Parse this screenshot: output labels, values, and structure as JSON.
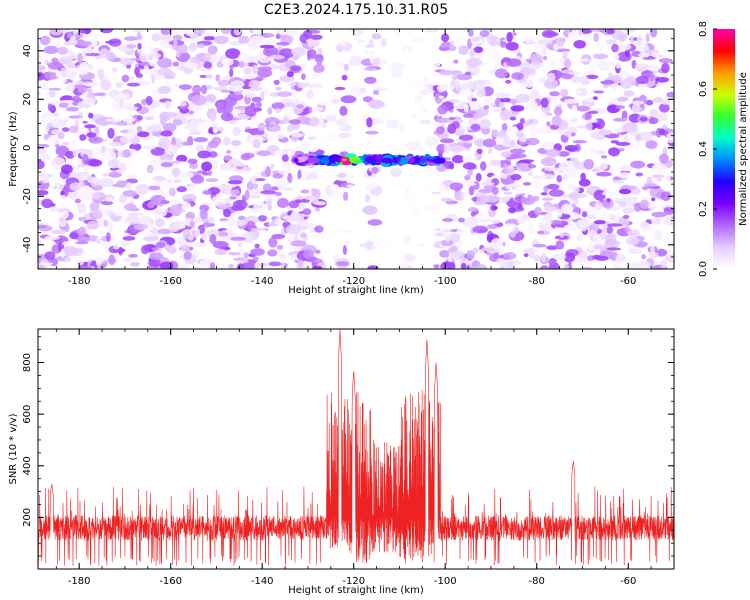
{
  "title": "C2E3.2024.175.10.31.R05",
  "chart_data": [
    {
      "type": "heatmap",
      "name": "spectrogram",
      "xlabel": "Height of straight line (km)",
      "ylabel": "Frequency (Hz)",
      "xlim": [
        -189,
        -50
      ],
      "ylim": [
        -50,
        49
      ],
      "xticks": [
        -180,
        -160,
        -140,
        -120,
        -100,
        -80,
        -60
      ],
      "yticks": [
        -40,
        -20,
        0,
        20,
        40
      ],
      "colorbar": {
        "label": "Normalized spectral amplitude",
        "range": [
          0,
          0.8
        ],
        "ticks": [
          0,
          0.2,
          0.4,
          0.6,
          0.8
        ],
        "colors": [
          "#ffffff",
          "#e6ccff",
          "#b366ff",
          "#7a00ff",
          "#2200ff",
          "#0088ff",
          "#00ffcc",
          "#33ff33",
          "#ccff00",
          "#ff9900",
          "#ff0000",
          "#ff00aa"
        ]
      },
      "features": {
        "noise_level": 0.1,
        "gap_regions": [
          [
            -127,
            -123
          ],
          [
            -121,
            -117
          ],
          [
            -115,
            -102
          ]
        ],
        "signal_band": {
          "x": [
            -133,
            -101
          ],
          "frequency_hz": -5,
          "peak_amplitude": 0.8,
          "peak_x": -122
        }
      }
    },
    {
      "type": "line",
      "name": "snr",
      "color": "#ee2222",
      "xlabel": "Height of straight line (km)",
      "ylabel": "SNR (10 * v/v)",
      "xlim": [
        -189,
        -50
      ],
      "ylim": [
        0,
        930
      ],
      "xticks": [
        -180,
        -160,
        -140,
        -120,
        -100,
        -80,
        -60
      ],
      "yticks": [
        200,
        400,
        600,
        800
      ],
      "background_range": [
        40,
        320
      ],
      "peaks": [
        {
          "x": -123,
          "y": 930
        },
        {
          "x": -120,
          "y": 770
        },
        {
          "x": -104,
          "y": 890
        },
        {
          "x": -102,
          "y": 800
        },
        {
          "x": -72,
          "y": 420
        },
        {
          "x": -186,
          "y": 330
        }
      ],
      "dip_region": [
        -121,
        -101
      ]
    }
  ]
}
